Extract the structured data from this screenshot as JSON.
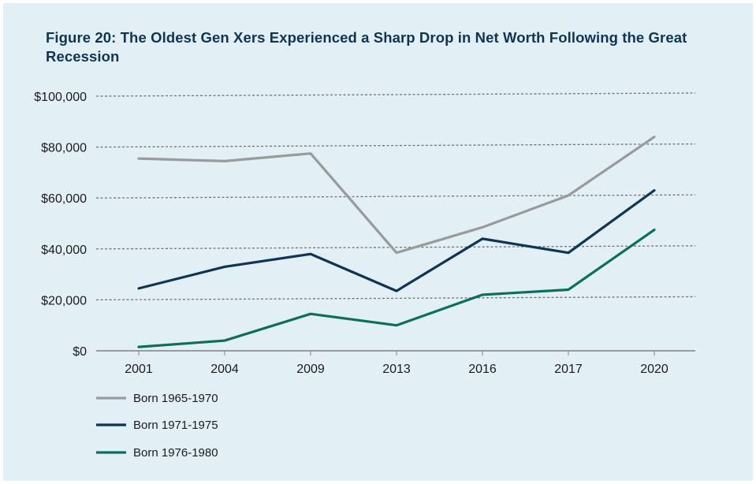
{
  "title_lead": "Figure 20:",
  "title_rest": " The Oldest Gen Xers Experienced a Sharp Drop in Net Worth Following the Great Recession",
  "chart_data": {
    "type": "line",
    "title": "Figure 20: The Oldest Gen Xers Experienced a Sharp Drop in Net Worth Following the Great Recession",
    "xlabel": "",
    "ylabel": "",
    "categories": [
      "2001",
      "2004",
      "2009",
      "2013",
      "2016",
      "2017",
      "2020"
    ],
    "ylim": [
      0,
      100000
    ],
    "yticks": [
      0,
      20000,
      40000,
      60000,
      80000,
      100000
    ],
    "ytick_labels": [
      "$0",
      "$20,000",
      "$40,000",
      "$60,000",
      "$80,000",
      "$100,000"
    ],
    "grid": "dashed-horizontal",
    "legend_position": "bottom-left",
    "series": [
      {
        "name": "Born 1965-1970",
        "color": "#999a9c",
        "values": [
          75500,
          74500,
          77500,
          38500,
          48500,
          61000,
          84000
        ]
      },
      {
        "name": "Born 1971-1975",
        "color": "#0f3553",
        "values": [
          24500,
          33000,
          38000,
          23500,
          44000,
          38500,
          63000
        ]
      },
      {
        "name": "Born 1976-1980",
        "color": "#0e6e5d",
        "values": [
          1500,
          4000,
          14500,
          10000,
          22000,
          24000,
          47500
        ]
      }
    ]
  }
}
